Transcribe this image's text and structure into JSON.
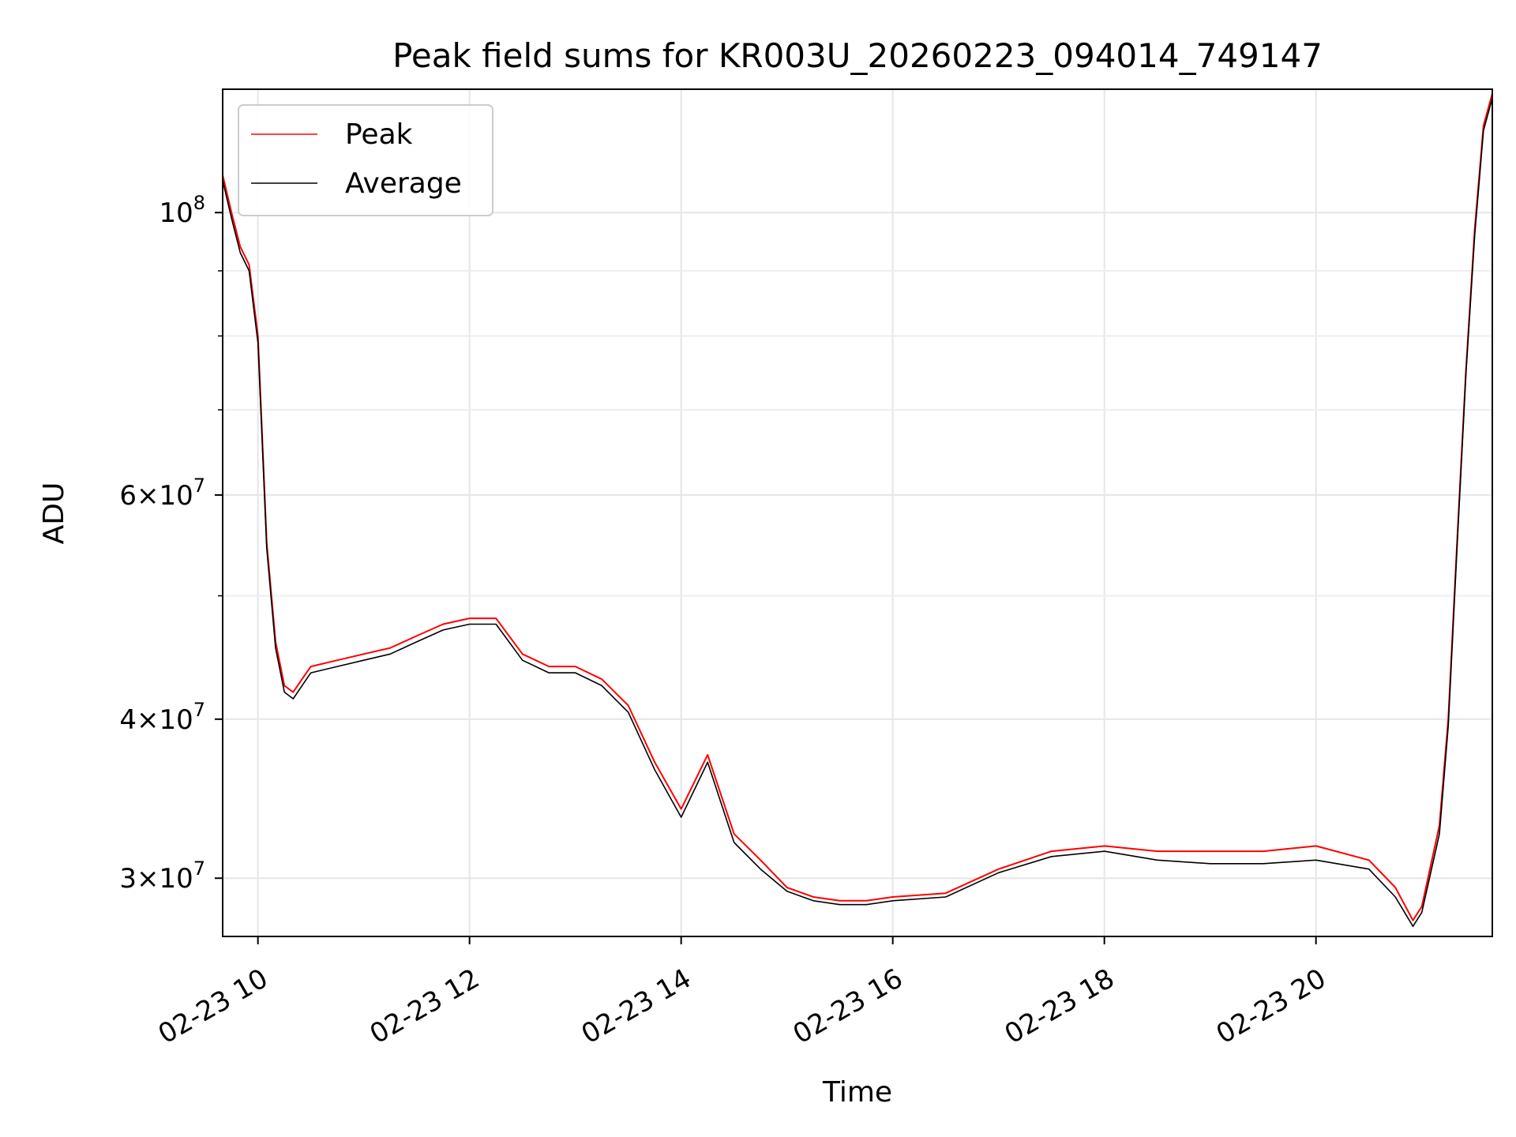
{
  "chart_data": {
    "type": "line",
    "title": "Peak field sums for KR003U_20260223_094014_749147",
    "xlabel": "Time",
    "ylabel": "ADU",
    "y_scale": "log",
    "xlim": [
      "02-23 09:40",
      "02-23 21:40"
    ],
    "ylim": [
      27000000,
      125000000
    ],
    "grid": true,
    "legend_position": "upper-left",
    "x_ticks": [
      "02-23 10",
      "02-23 12",
      "02-23 14",
      "02-23 16",
      "02-23 18",
      "02-23 20"
    ],
    "y_ticks": [
      {
        "value": 30000000,
        "base": "3",
        "exp": "7"
      },
      {
        "value": 40000000,
        "base": "4",
        "exp": "7"
      },
      {
        "value": 60000000,
        "base": "6",
        "exp": "7"
      },
      {
        "value": 100000000,
        "base": "10",
        "exp": "8"
      }
    ],
    "series": [
      {
        "name": "Peak",
        "color": "#ff0000",
        "x": [
          "02-23 09:40",
          "02-23 09:45",
          "02-23 09:50",
          "02-23 09:55",
          "02-23 10:00",
          "02-23 10:05",
          "02-23 10:10",
          "02-23 10:15",
          "02-23 10:20",
          "02-23 10:25",
          "02-23 10:30",
          "02-23 10:45",
          "02-23 11:00",
          "02-23 11:15",
          "02-23 11:30",
          "02-23 11:45",
          "02-23 12:00",
          "02-23 12:15",
          "02-23 12:30",
          "02-23 12:45",
          "02-23 13:00",
          "02-23 13:15",
          "02-23 13:30",
          "02-23 13:45",
          "02-23 14:00",
          "02-23 14:15",
          "02-23 14:30",
          "02-23 14:45",
          "02-23 15:00",
          "02-23 15:15",
          "02-23 15:30",
          "02-23 15:45",
          "02-23 16:00",
          "02-23 16:30",
          "02-23 17:00",
          "02-23 17:30",
          "02-23 18:00",
          "02-23 18:30",
          "02-23 19:00",
          "02-23 19:30",
          "02-23 20:00",
          "02-23 20:30",
          "02-23 20:45",
          "02-23 20:55",
          "02-23 21:00",
          "02-23 21:10",
          "02-23 21:15",
          "02-23 21:20",
          "02-23 21:25",
          "02-23 21:30",
          "02-23 21:35",
          "02-23 21:40"
        ],
        "y": [
          107000000,
          100000000,
          94000000,
          91000000,
          80000000,
          55000000,
          46000000,
          42500000,
          42000000,
          43000000,
          44000000,
          44500000,
          45000000,
          45500000,
          46500000,
          47500000,
          48000000,
          48000000,
          45000000,
          44000000,
          44000000,
          43000000,
          41000000,
          37000000,
          34000000,
          37500000,
          32500000,
          31000000,
          29500000,
          29000000,
          28800000,
          28800000,
          29000000,
          29200000,
          30500000,
          31500000,
          31800000,
          31500000,
          31500000,
          31500000,
          31800000,
          31000000,
          29500000,
          27800000,
          28500000,
          33000000,
          40000000,
          55000000,
          75000000,
          97000000,
          117000000,
          124000000
        ]
      },
      {
        "name": "Average",
        "color": "#000000",
        "x": [
          "02-23 09:40",
          "02-23 09:45",
          "02-23 09:50",
          "02-23 09:55",
          "02-23 10:00",
          "02-23 10:05",
          "02-23 10:10",
          "02-23 10:15",
          "02-23 10:20",
          "02-23 10:25",
          "02-23 10:30",
          "02-23 10:45",
          "02-23 11:00",
          "02-23 11:15",
          "02-23 11:30",
          "02-23 11:45",
          "02-23 12:00",
          "02-23 12:15",
          "02-23 12:30",
          "02-23 12:45",
          "02-23 13:00",
          "02-23 13:15",
          "02-23 13:30",
          "02-23 13:45",
          "02-23 14:00",
          "02-23 14:15",
          "02-23 14:30",
          "02-23 14:45",
          "02-23 15:00",
          "02-23 15:15",
          "02-23 15:30",
          "02-23 15:45",
          "02-23 16:00",
          "02-23 16:30",
          "02-23 17:00",
          "02-23 17:30",
          "02-23 18:00",
          "02-23 18:30",
          "02-23 19:00",
          "02-23 19:30",
          "02-23 20:00",
          "02-23 20:30",
          "02-23 20:45",
          "02-23 20:55",
          "02-23 21:00",
          "02-23 21:10",
          "02-23 21:15",
          "02-23 21:20",
          "02-23 21:25",
          "02-23 21:30",
          "02-23 21:35",
          "02-23 21:40"
        ],
        "y": [
          106000000,
          99000000,
          93000000,
          90000000,
          79000000,
          54500000,
          45500000,
          42000000,
          41500000,
          42500000,
          43500000,
          44000000,
          44500000,
          45000000,
          46000000,
          47000000,
          47500000,
          47500000,
          44500000,
          43500000,
          43500000,
          42500000,
          40500000,
          36500000,
          33500000,
          37000000,
          32000000,
          30500000,
          29300000,
          28800000,
          28600000,
          28600000,
          28800000,
          29000000,
          30300000,
          31200000,
          31500000,
          31000000,
          30800000,
          30800000,
          31000000,
          30500000,
          29000000,
          27500000,
          28200000,
          32500000,
          39500000,
          54500000,
          74500000,
          96000000,
          116000000,
          123000000
        ]
      }
    ]
  }
}
